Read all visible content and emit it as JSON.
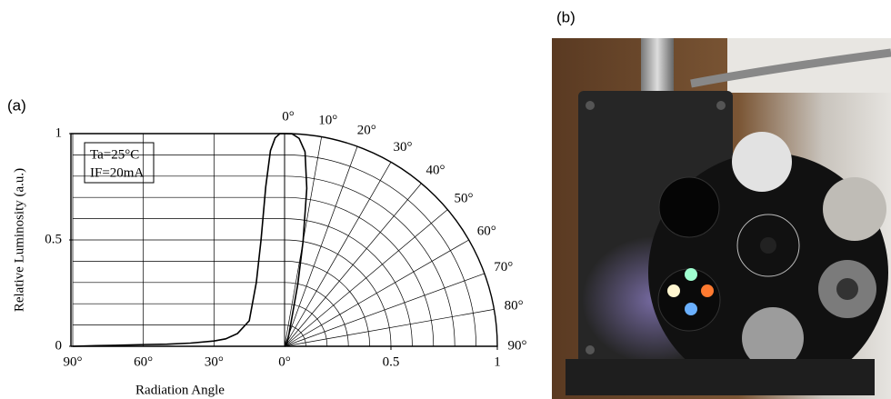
{
  "panel_labels": [
    "(a)",
    "(b)"
  ],
  "chart_data": {
    "type": "line",
    "y_label": "Relative Luminosity (a.u.)",
    "x_label": "Radiation Angle",
    "annotations": [
      "Ta=25°C",
      "IF=20mA"
    ],
    "series": [
      {
        "x": [
          90,
          80,
          70,
          60,
          50,
          40,
          30,
          25,
          20,
          15,
          12,
          10,
          8,
          6,
          4,
          2,
          0
        ],
        "values": [
          0,
          0.003,
          0.005,
          0.008,
          0.01,
          0.015,
          0.025,
          0.035,
          0.06,
          0.12,
          0.3,
          0.5,
          0.75,
          0.92,
          0.98,
          1,
          1
        ],
        "color": "#000000"
      }
    ],
    "xlim": [
      90,
      0
    ],
    "xticks": [
      {
        "value": 90,
        "label": "90°"
      },
      {
        "value": 60,
        "label": "60°"
      },
      {
        "value": 30,
        "label": "30°"
      },
      {
        "value": 0,
        "label": "0°"
      }
    ],
    "ylim": [
      0,
      1
    ],
    "yticks": [
      0,
      0.5,
      1
    ],
    "ygrid": [
      0.1,
      0.2,
      0.3,
      0.4,
      0.5,
      0.6,
      0.7,
      0.8,
      0.9
    ],
    "polar": {
      "rlim": [
        0,
        1
      ],
      "rticks": [
        0.5,
        1
      ],
      "angle_ticks": [
        {
          "value": 0,
          "label": "0°"
        },
        {
          "value": 10,
          "label": "10°"
        },
        {
          "value": 20,
          "label": "20°"
        },
        {
          "value": 30,
          "label": "30°"
        },
        {
          "value": 40,
          "label": "40°"
        },
        {
          "value": 50,
          "label": "50°"
        },
        {
          "value": 60,
          "label": "60°"
        },
        {
          "value": 70,
          "label": "70°"
        },
        {
          "value": 80,
          "label": "80°"
        },
        {
          "value": 90,
          "label": "90°"
        }
      ]
    },
    "grid": true
  }
}
